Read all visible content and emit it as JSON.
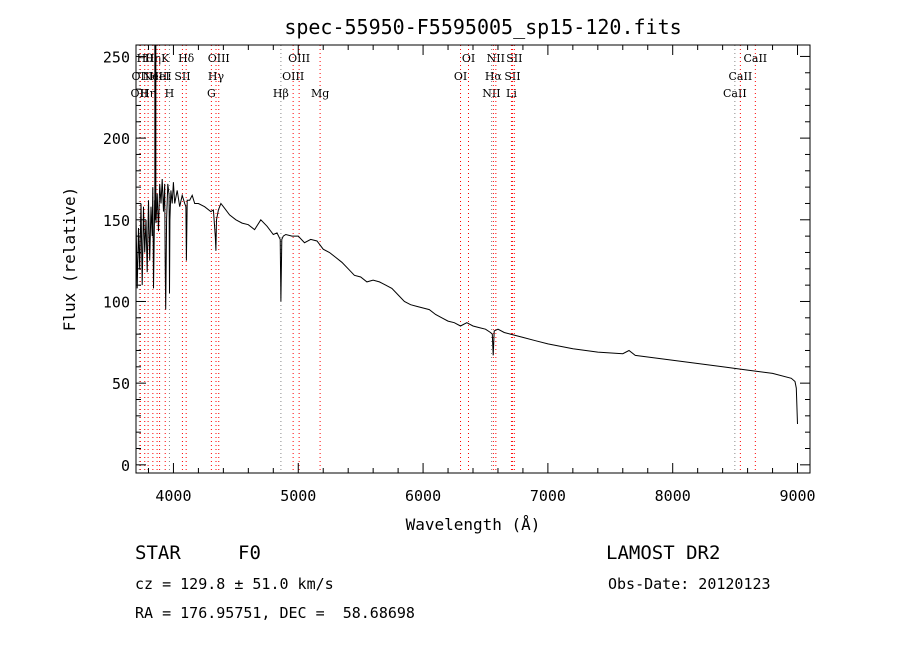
{
  "chart_data": {
    "type": "line",
    "title": "spec-55950-F5595005_sp15-120.fits",
    "xlabel": "Wavelength (Å)",
    "ylabel": "Flux (relative)",
    "xlim": [
      3700,
      9100
    ],
    "ylim": [
      -5,
      257
    ],
    "x_ticks": [
      4000,
      5000,
      6000,
      7000,
      8000,
      9000
    ],
    "y_ticks": [
      0,
      50,
      100,
      150,
      200,
      250
    ],
    "grid": false,
    "series": [
      {
        "color": "#000000",
        "x": [
          3700,
          3710,
          3720,
          3730,
          3740,
          3750,
          3760,
          3770,
          3780,
          3790,
          3800,
          3810,
          3820,
          3830,
          3835,
          3840,
          3850,
          3860,
          3870,
          3880,
          3890,
          3900,
          3910,
          3920,
          3930,
          3934,
          3938,
          3945,
          3955,
          3965,
          3968,
          3972,
          3980,
          3990,
          4000,
          4010,
          4030,
          4050,
          4070,
          4090,
          4100,
          4104,
          4110,
          4130,
          4150,
          4170,
          4200,
          4250,
          4300,
          4320,
          4335,
          4340,
          4345,
          4360,
          4380,
          4400,
          4450,
          4500,
          4550,
          4600,
          4650,
          4700,
          4750,
          4800,
          4830,
          4855,
          4861,
          4868,
          4880,
          4900,
          4950,
          5000,
          5050,
          5100,
          5150,
          5200,
          5250,
          5300,
          5350,
          5400,
          5450,
          5500,
          5550,
          5600,
          5650,
          5700,
          5750,
          5800,
          5850,
          5900,
          5950,
          6000,
          6050,
          6100,
          6150,
          6200,
          6250,
          6300,
          6350,
          6400,
          6450,
          6500,
          6540,
          6555,
          6562,
          6570,
          6600,
          6650,
          6700,
          6800,
          6900,
          7000,
          7200,
          7400,
          7600,
          7650,
          7700,
          7800,
          8000,
          8200,
          8400,
          8600,
          8800,
          8950,
          8980,
          8990,
          9000
        ],
        "y": [
          152,
          108,
          145,
          120,
          160,
          110,
          158,
          130,
          150,
          118,
          162,
          125,
          158,
          140,
          170,
          108,
          162,
          148,
          166,
          143,
          172,
          160,
          175,
          155,
          172,
          123,
          95,
          150,
          172,
          165,
          105,
          150,
          168,
          160,
          173,
          160,
          168,
          158,
          165,
          160,
          158,
          125,
          162,
          162,
          165,
          160,
          160,
          158,
          155,
          156,
          140,
          131,
          150,
          156,
          160,
          158,
          153,
          150,
          148,
          147,
          144,
          150,
          146,
          141,
          142,
          138,
          100,
          138,
          140,
          141,
          140,
          140,
          136,
          138,
          137,
          132,
          130,
          127,
          124,
          120,
          116,
          115,
          112,
          113,
          112,
          110,
          108,
          104,
          100,
          98,
          97,
          96,
          95,
          92,
          90,
          88,
          87,
          85,
          87,
          85,
          84,
          83,
          81,
          80,
          67,
          82,
          83,
          81,
          80,
          78,
          76,
          74,
          71,
          69,
          68,
          70,
          67,
          66,
          64,
          62,
          60,
          58,
          56,
          53,
          51,
          47,
          25
        ]
      }
    ],
    "spectral_lines": [
      {
        "wl": 3727,
        "labels": [
          "OII"
        ],
        "row": 2
      },
      {
        "wl": 3735,
        "labels": [
          "OII"
        ],
        "row": 1
      },
      {
        "wl": 3770,
        "labels": [
          "Hθ"
        ],
        "row": 0
      },
      {
        "wl": 3797,
        "labels": [
          "Hη"
        ],
        "row": 2
      },
      {
        "wl": 3835,
        "labels": [
          "Hη"
        ],
        "row": 0
      },
      {
        "wl": 3869,
        "labels": [
          "NeIII"
        ],
        "row": 1
      },
      {
        "wl": 3889,
        "labels": [
          "HeI"
        ],
        "row": 1
      },
      {
        "wl": 3934,
        "labels": [
          "K"
        ],
        "row": 0
      },
      {
        "wl": 3968,
        "labels": [
          "H"
        ],
        "row": 2
      },
      {
        "wl": 4072,
        "labels": [
          "SII"
        ],
        "row": 1
      },
      {
        "wl": 4102,
        "labels": [
          "Hδ"
        ],
        "row": 0
      },
      {
        "wl": 4304,
        "labels": [
          "G"
        ],
        "row": 2
      },
      {
        "wl": 4341,
        "labels": [
          "Hγ"
        ],
        "row": 1
      },
      {
        "wl": 4363,
        "labels": [
          "OIII"
        ],
        "row": 0
      },
      {
        "wl": 4861,
        "labels": [
          "Hβ"
        ],
        "row": 2
      },
      {
        "wl": 4959,
        "labels": [
          "OIII"
        ],
        "row": 1
      },
      {
        "wl": 5007,
        "labels": [
          "OIII"
        ],
        "row": 0
      },
      {
        "wl": 5175,
        "labels": [
          "Mg"
        ],
        "row": 2
      },
      {
        "wl": 6300,
        "labels": [
          "OI"
        ],
        "row": 1
      },
      {
        "wl": 6364,
        "labels": [
          "OI"
        ],
        "row": 0
      },
      {
        "wl": 6548,
        "labels": [
          "NII"
        ],
        "row": 2
      },
      {
        "wl": 6563,
        "labels": [
          "Hα"
        ],
        "row": 1
      },
      {
        "wl": 6583,
        "labels": [
          "NII"
        ],
        "row": 0
      },
      {
        "wl": 6708,
        "labels": [
          "Li"
        ],
        "row": 2
      },
      {
        "wl": 6716,
        "labels": [
          "SII"
        ],
        "row": 1
      },
      {
        "wl": 6731,
        "labels": [
          "SII"
        ],
        "row": 0
      },
      {
        "wl": 8498,
        "labels": [
          "CaII"
        ],
        "row": 2
      },
      {
        "wl": 8542,
        "labels": [
          "CaII"
        ],
        "row": 1
      },
      {
        "wl": 8662,
        "labels": [
          "CaII"
        ],
        "row": 0
      }
    ]
  },
  "info": {
    "object_class": "STAR",
    "subclass": "F0",
    "survey": "LAMOST DR2",
    "redshift_line": "cz = 129.8 ± 51.0 km/s",
    "obs_date_line": "Obs-Date: 20120123",
    "coords_line": "RA = 176.95751, DEC =  58.68698"
  },
  "colors": {
    "line_marker": "#ff0000",
    "grey_marker": "#888888",
    "spectrum": "#000000"
  }
}
